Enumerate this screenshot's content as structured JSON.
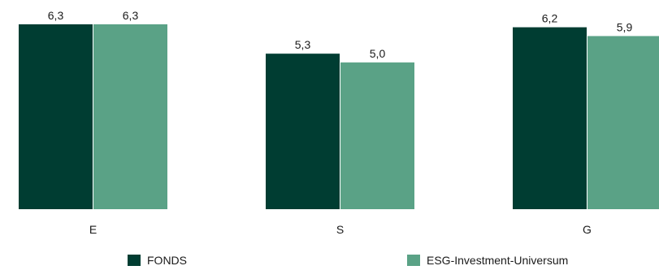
{
  "colors": {
    "fonds": "#003d32",
    "universum": "#5aa286"
  },
  "chart_data": {
    "type": "bar",
    "categories": [
      "E",
      "S",
      "G"
    ],
    "series": [
      {
        "name": "FONDS",
        "values": [
          6.3,
          5.3,
          6.2
        ]
      },
      {
        "name": "ESG-Investment-Universum",
        "values": [
          6.3,
          5.0,
          5.9
        ]
      }
    ],
    "value_labels": [
      [
        "6,3",
        "5,3",
        "6,2"
      ],
      [
        "6,3",
        "5,0",
        "5,9"
      ]
    ],
    "ylim": [
      0,
      6.3
    ],
    "legend": "bottom",
    "grid": false
  }
}
